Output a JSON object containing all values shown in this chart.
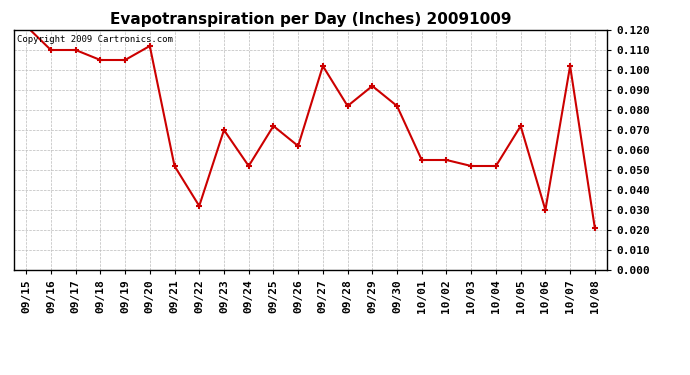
{
  "title": "Evapotranspiration per Day (Inches) 20091009",
  "copyright_text": "Copyright 2009 Cartronics.com",
  "x_labels": [
    "09/15",
    "09/16",
    "09/17",
    "09/18",
    "09/19",
    "09/20",
    "09/21",
    "09/22",
    "09/23",
    "09/24",
    "09/25",
    "09/26",
    "09/27",
    "09/28",
    "09/29",
    "09/30",
    "10/01",
    "10/02",
    "10/03",
    "10/04",
    "10/05",
    "10/06",
    "10/07",
    "10/08"
  ],
  "y_values": [
    0.122,
    0.11,
    0.11,
    0.105,
    0.105,
    0.112,
    0.052,
    0.032,
    0.07,
    0.052,
    0.072,
    0.062,
    0.102,
    0.082,
    0.092,
    0.082,
    0.055,
    0.055,
    0.052,
    0.052,
    0.072,
    0.03,
    0.102,
    0.021
  ],
  "line_color": "#cc0000",
  "marker": "+",
  "marker_size": 5,
  "ylim": [
    0.0,
    0.12
  ],
  "ytick_min": 0.0,
  "ytick_max": 0.12,
  "ytick_step": 0.01,
  "background_color": "#ffffff",
  "grid_color": "#bbbbbb",
  "title_fontsize": 11,
  "tick_fontsize": 8,
  "copyright_fontsize": 6.5
}
